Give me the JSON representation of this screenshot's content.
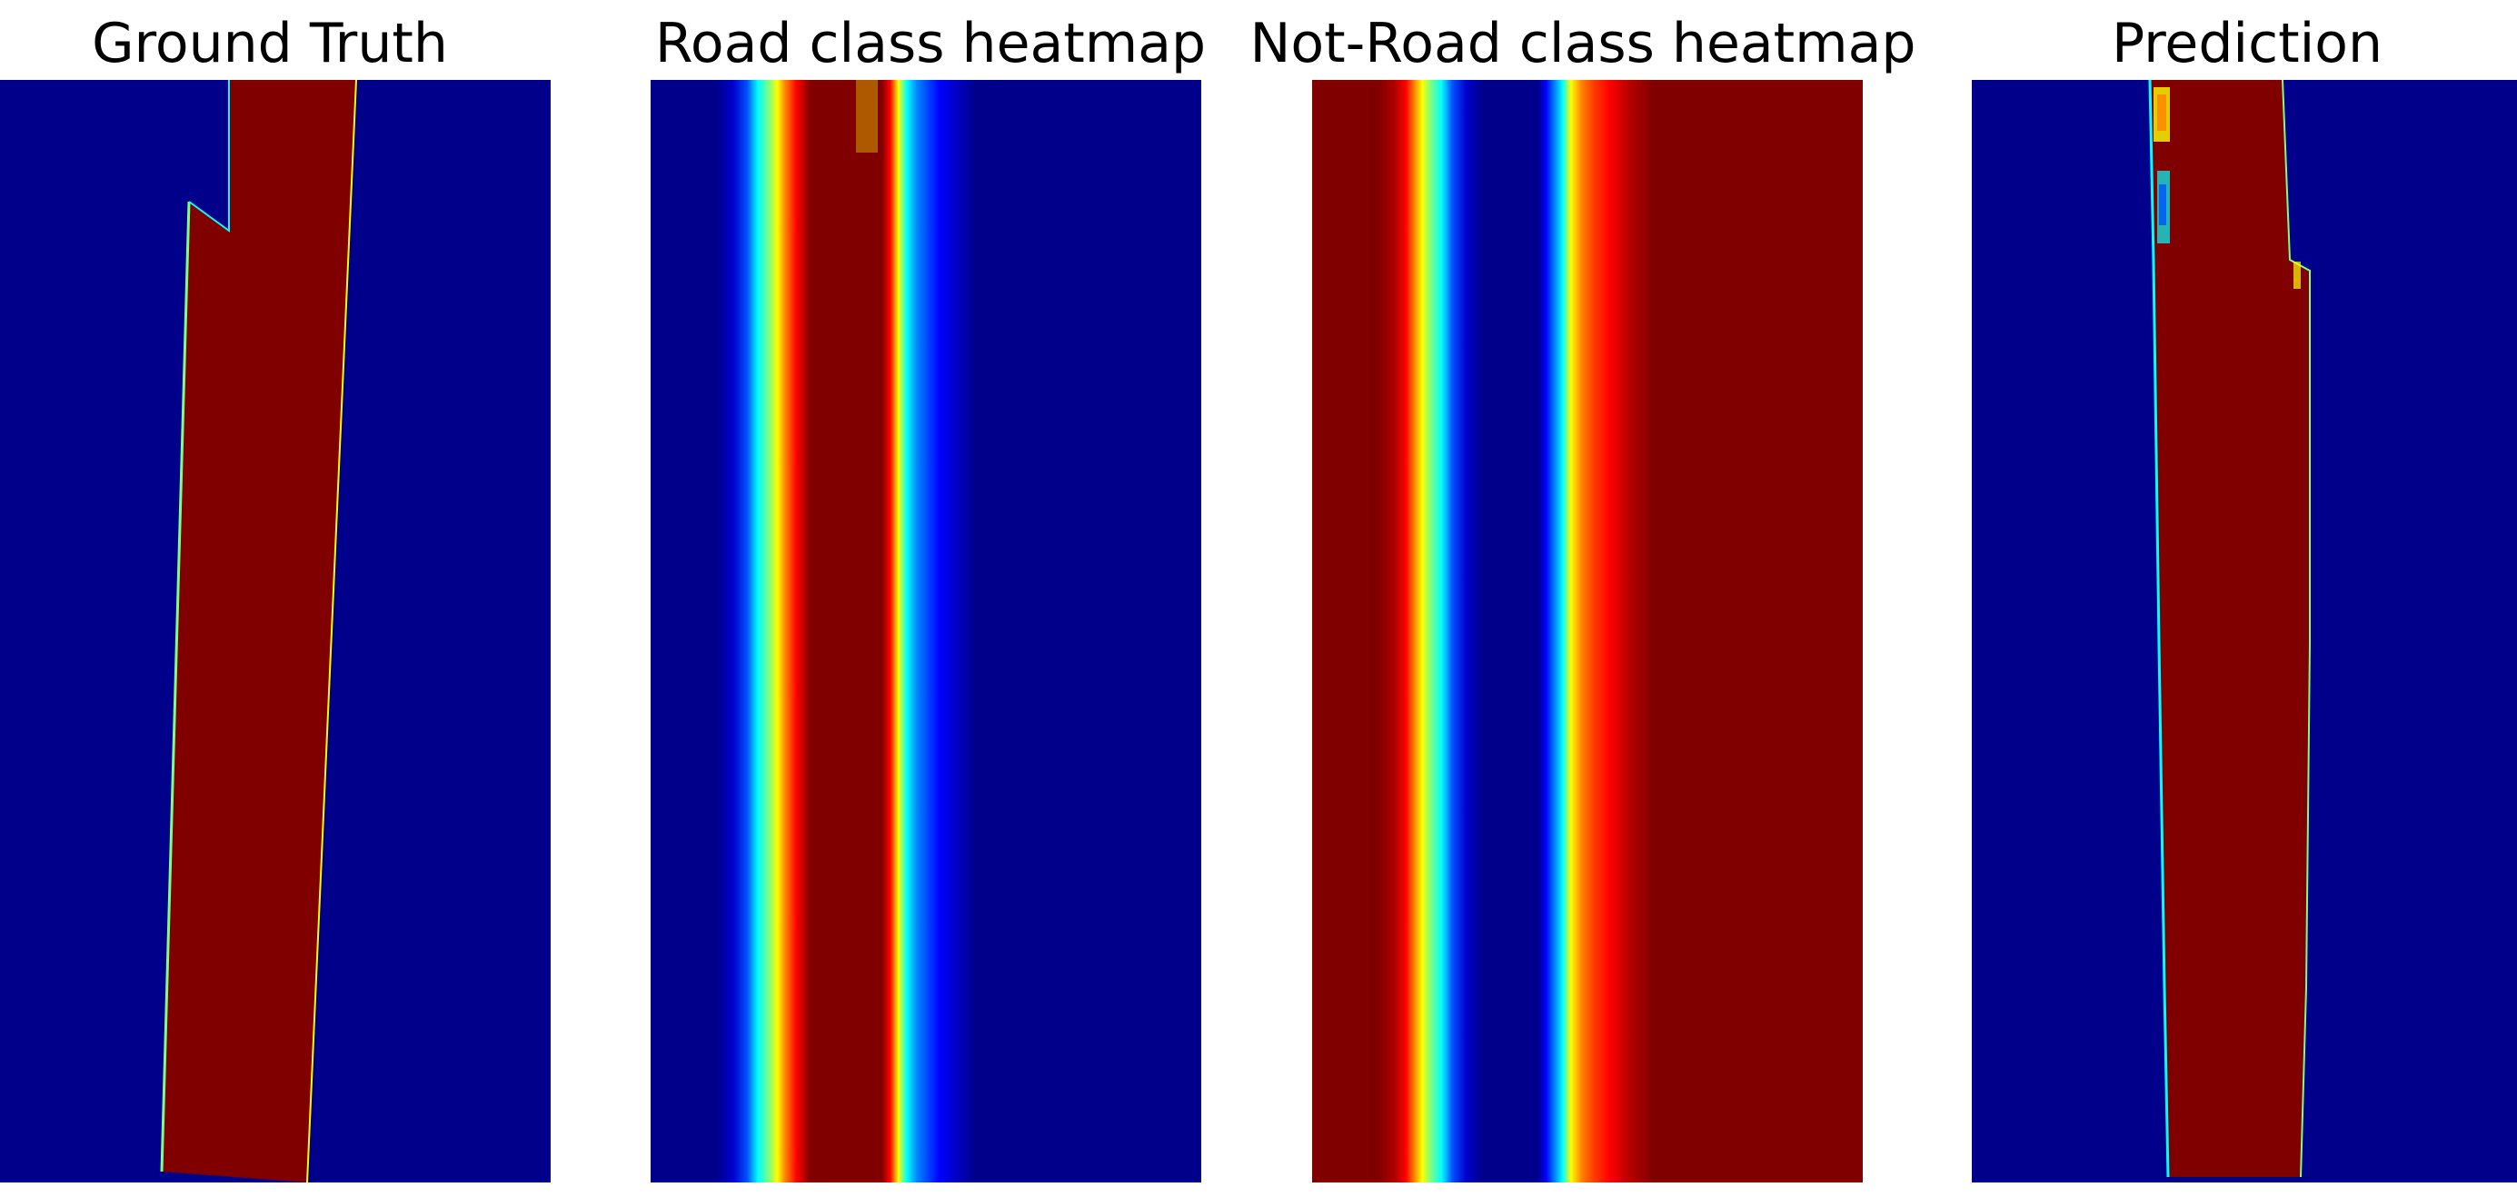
{
  "figure": {
    "panels": [
      {
        "title": "Ground Truth",
        "type": "ground-truth-mask"
      },
      {
        "title": "Road class heatmap",
        "type": "road-heatmap"
      },
      {
        "title": "Not-Road class heatmap",
        "type": "not-road-heatmap"
      },
      {
        "title": "Prediction",
        "type": "prediction-mask"
      }
    ],
    "colors": {
      "background": "#00008b",
      "road": "#800000",
      "jet_blue": "#0000ff",
      "jet_cyan": "#00ffff",
      "jet_green": "#7fff7f",
      "jet_yellow": "#ffff00",
      "jet_orange": "#ff7f00",
      "jet_red": "#ff0000"
    }
  }
}
